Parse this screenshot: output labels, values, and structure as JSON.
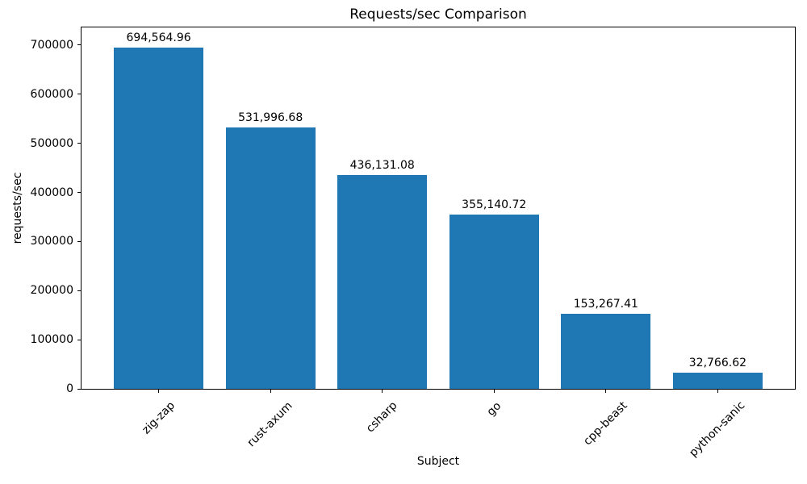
{
  "chart_data": {
    "type": "bar",
    "title": "Requests/sec Comparison",
    "xlabel": "Subject",
    "ylabel": "requests/sec",
    "categories": [
      "zig-zap",
      "rust-axum",
      "csharp",
      "go",
      "cpp-beast",
      "python-sanic"
    ],
    "values": [
      694564.96,
      531996.68,
      436131.08,
      355140.72,
      153267.41,
      32766.62
    ],
    "bar_labels": [
      "694,564.96",
      "531,996.68",
      "436,131.08",
      "355,140.72",
      "153,267.41",
      "32,766.62"
    ],
    "y_ticks": [
      0,
      100000,
      200000,
      300000,
      400000,
      500000,
      600000,
      700000
    ],
    "ylim": [
      0,
      736000
    ],
    "bar_color": "#1f77b4",
    "grid": false,
    "legend": null
  }
}
